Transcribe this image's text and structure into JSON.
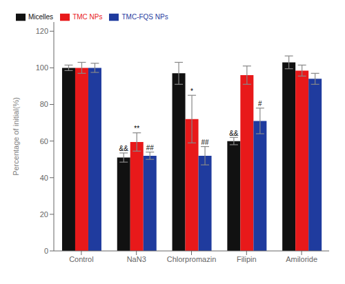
{
  "chart_data": {
    "type": "bar",
    "categories": [
      "Control",
      "NaN3",
      "Chlorpromazin",
      "Filipin",
      "Amiloride"
    ],
    "series": [
      {
        "name": "Micelles",
        "color": "#111111",
        "values": [
          100,
          51,
          97,
          60,
          103
        ],
        "errors": [
          1.5,
          2.5,
          6,
          2,
          3.5
        ]
      },
      {
        "name": "TMC NPs",
        "color": "#e8191a",
        "values": [
          100,
          59.5,
          72,
          96,
          98.5
        ],
        "errors": [
          3,
          5,
          13,
          5,
          3
        ]
      },
      {
        "name": "TMC-FQS NPs",
        "color": "#1f3b9e",
        "values": [
          100,
          52,
          52,
          71,
          94
        ],
        "errors": [
          2.5,
          2,
          5,
          7,
          3
        ]
      }
    ],
    "ylabel": "Percentage of initial(%)",
    "ylim": [
      0,
      125
    ],
    "yticks": [
      0,
      20,
      40,
      60,
      80,
      100,
      120
    ],
    "grid": false,
    "legend": "upper left",
    "annotations": [
      {
        "text": "&&",
        "category": "NaN3",
        "series": "Micelles"
      },
      {
        "text": "**",
        "category": "NaN3",
        "series": "TMC NPs"
      },
      {
        "text": "##",
        "category": "NaN3",
        "series": "TMC-FQS NPs"
      },
      {
        "text": "*",
        "category": "Chlorpromazin",
        "series": "TMC NPs"
      },
      {
        "text": "##",
        "category": "Chlorpromazin",
        "series": "TMC-FQS NPs"
      },
      {
        "text": "&&",
        "category": "Filipin",
        "series": "Micelles"
      },
      {
        "text": "#",
        "category": "Filipin",
        "series": "TMC-FQS NPs"
      }
    ]
  }
}
